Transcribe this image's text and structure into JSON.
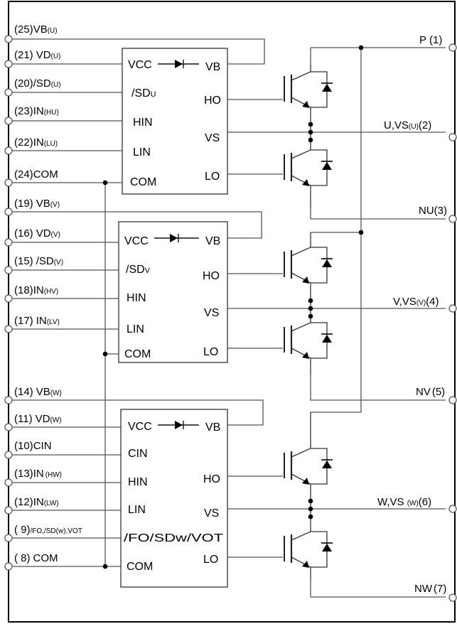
{
  "left_pins": [
    {
      "num": "(25)",
      "name": "VB",
      "sub": "(U)"
    },
    {
      "num": "(21)",
      "name": "VD",
      "sub": "(U)"
    },
    {
      "num": "(20)",
      "name": "/SD",
      "sub": "(U)"
    },
    {
      "num": "(23)",
      "name": "IN",
      "sub": "(HU)"
    },
    {
      "num": "(22)",
      "name": "IN",
      "sub": "(LU)"
    },
    {
      "num": "(24)",
      "name": "COM",
      "sub": ""
    },
    {
      "num": "(19)",
      "name": "VB",
      "sub": "(V)"
    },
    {
      "num": "(16)",
      "name": "VD",
      "sub": "(V)"
    },
    {
      "num": "(15)",
      "name": "/SD",
      "sub": "(V)"
    },
    {
      "num": "(18)",
      "name": "IN",
      "sub": "(HV)"
    },
    {
      "num": "(17)",
      "name": "IN",
      "sub": "(LV)"
    },
    {
      "num": "(14)",
      "name": "VB",
      "sub": "(W)"
    },
    {
      "num": "(11)",
      "name": "VD",
      "sub": "(W)"
    },
    {
      "num": "(10)",
      "name": "CIN",
      "sub": ""
    },
    {
      "num": "(13)",
      "name": "IN",
      "sub": "(HW)"
    },
    {
      "num": "(12)",
      "name": "IN",
      "sub": "(LW)"
    },
    {
      "num": "( 9)",
      "name": "",
      "sub": "/FO,/SD(w),VOT"
    },
    {
      "num": "( 8)",
      "name": "COM",
      "sub": ""
    }
  ],
  "right_pins": [
    {
      "label": "P",
      "num": "(1)",
      "sub": ""
    },
    {
      "label": "U,VS",
      "num": "(2)",
      "sub": "(U)"
    },
    {
      "label": "NU",
      "num": "(3)",
      "sub": ""
    },
    {
      "label": "V,VS",
      "num": "(4)",
      "sub": "(V)"
    },
    {
      "label": "NV",
      "num": "(5)",
      "sub": ""
    },
    {
      "label": "W,VS ",
      "num": "(6)",
      "sub": "(W)"
    },
    {
      "label": "NW",
      "num": "(7)",
      "sub": ""
    }
  ],
  "chip_labels": {
    "vcc": "VCC",
    "vb": "VB",
    "ho": "HO",
    "hin": "HIN",
    "vs": "VS",
    "lin": "LIN",
    "com": "COM",
    "lo": "LO",
    "cin": "CIN",
    "sd_main": "/SD",
    "sd_u": "U",
    "sd_v": "V",
    "fo_w": "/FO/SDw/VOT"
  }
}
